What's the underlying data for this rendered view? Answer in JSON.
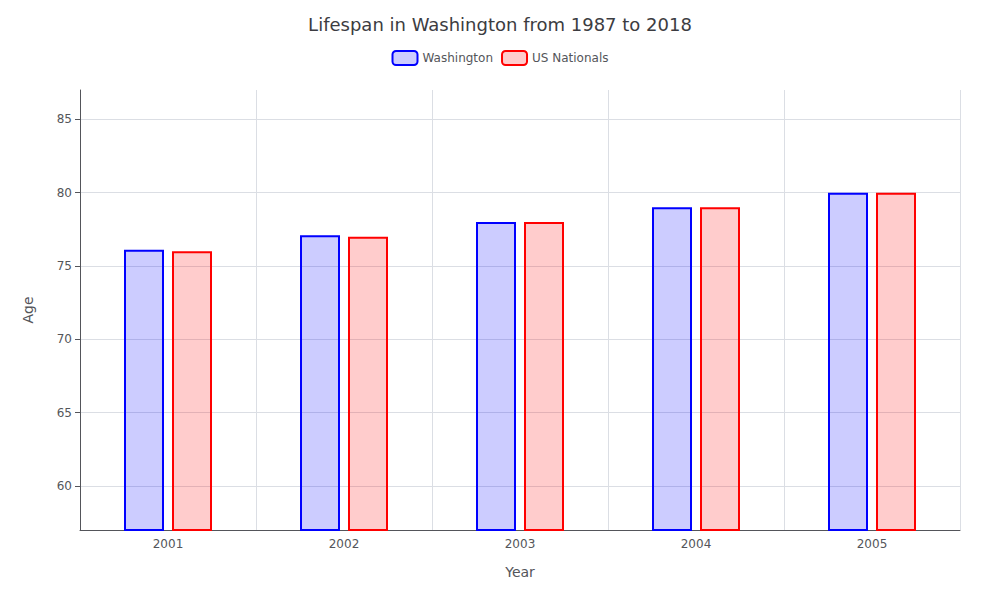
{
  "chart_data": {
    "type": "bar",
    "title": "Lifespan in Washington from 1987 to 2018",
    "xlabel": "Year",
    "ylabel": "Age",
    "categories": [
      "2001",
      "2002",
      "2003",
      "2004",
      "2005"
    ],
    "series": [
      {
        "name": "Washington",
        "color": "#0000ff",
        "values": [
          76.1,
          77.1,
          78.0,
          79.0,
          80.0
        ]
      },
      {
        "name": "US Nationals",
        "color": "#ff0000",
        "values": [
          76.0,
          77.0,
          78.0,
          79.0,
          80.0
        ]
      }
    ],
    "ylim": [
      57,
      87
    ],
    "yticks": [
      60,
      65,
      70,
      75,
      80,
      85
    ],
    "grid": true,
    "legend": "top"
  }
}
